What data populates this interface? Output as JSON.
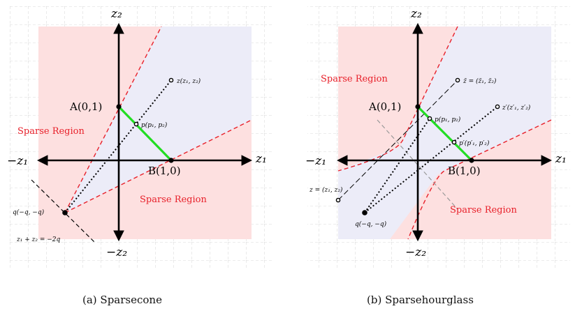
{
  "panel_a": {
    "axis_labels": {
      "x_pos": "z₁",
      "x_neg": "−z₁",
      "y_pos": "z₂",
      "y_neg": "−z₂"
    },
    "point_A": "A(0,1)",
    "point_B": "B(1,0)",
    "point_z": "z(z₁, z₂)",
    "point_p": "p(p₁, p₂)",
    "point_q": "q(−q, −q)",
    "line_eq": "z₁ + z₂ = −2q",
    "region_upper": "Sparse Region",
    "region_lower": "Sparse Region",
    "caption": "(a) Sparsecone"
  },
  "panel_b": {
    "axis_labels": {
      "x_pos": "z₁",
      "x_neg": "−z₁",
      "y_pos": "z₂",
      "y_neg": "−z₂"
    },
    "point_A": "A(0,1)",
    "point_B": "B(1,0)",
    "point_ztilde": "z̃ = (z̃₁, z̃₂)",
    "point_zprime": "z′(z′₁, z′₂)",
    "point_p": "p(p₁, p₂)",
    "point_pprime": "p′(p′₁, p′₂)",
    "point_z": "z = (z₁, z₂)",
    "point_q": "q(−q, −q)",
    "region_upper": "Sparse Region",
    "region_lower": "Sparse Region",
    "caption": "(b) Sparsehourglass"
  },
  "colors": {
    "sparse": "#fde0e0",
    "blue": "#ececf8",
    "red_dash": "#e8202a",
    "green": "#22dd22",
    "grid": "#cccccc"
  }
}
